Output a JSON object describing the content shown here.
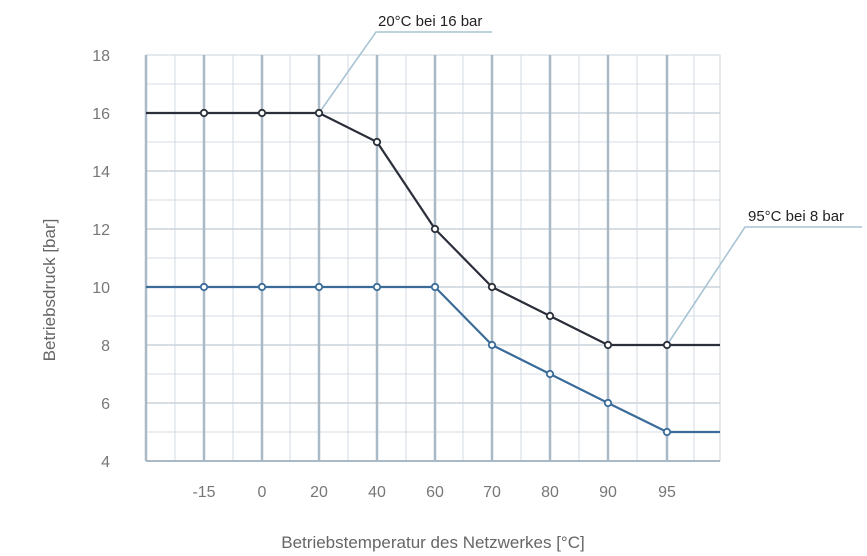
{
  "chart_data": {
    "type": "line",
    "xlabel": "Betriebstemperatur des Netzwerkes [°C]",
    "ylabel": "Betriebsdruck [bar]",
    "categories": [
      "-15",
      "0",
      "20",
      "40",
      "60",
      "70",
      "80",
      "90",
      "95"
    ],
    "y_ticks": [
      "4",
      "6",
      "8",
      "10",
      "12",
      "14",
      "16",
      "18"
    ],
    "ylim": [
      4,
      18
    ],
    "grid": true,
    "legend": "none",
    "series": [
      {
        "values": [
          16,
          16,
          16,
          15,
          12,
          10,
          9,
          8,
          8
        ],
        "line_extends_beyond_last_category": 8,
        "color": "#2a2f3a"
      },
      {
        "values": [
          10,
          10,
          10,
          10,
          10,
          8,
          7,
          6,
          5
        ],
        "line_extends_beyond_last_category": 5,
        "color": "#3b6b99"
      }
    ],
    "annotations": [
      {
        "text": "20°C bei 16 bar",
        "category": "20",
        "value": 16
      },
      {
        "text": "95°C bei 8 bar",
        "category": "95",
        "value": 8
      }
    ],
    "colors": {
      "grid": "#c9d3dc",
      "vertical_grid": "#aab9c6",
      "connector": "#a8c4d3",
      "axis": "#aab9c6"
    }
  }
}
